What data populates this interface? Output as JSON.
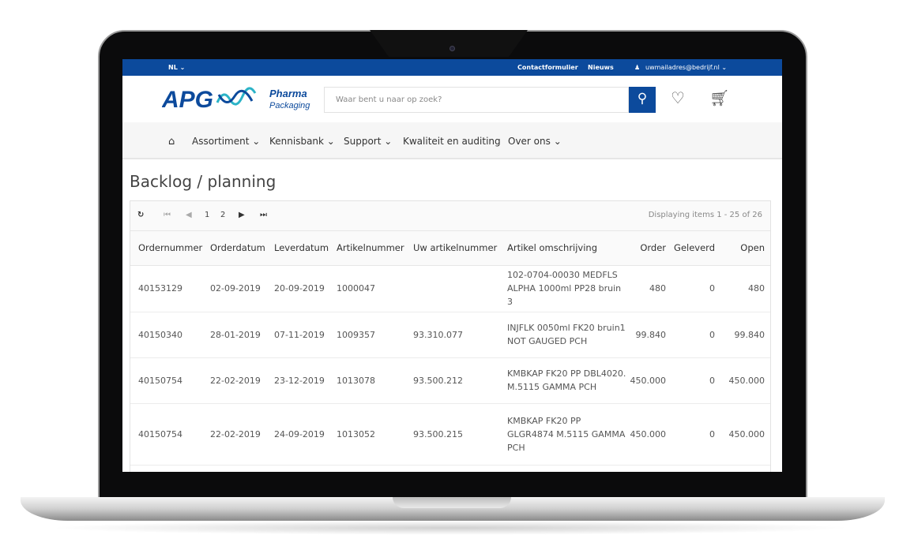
{
  "topbar": {
    "language": "NL ⌄",
    "contact": "Contactformulier",
    "news": "Nieuws",
    "user": "uwmailadres@bedrijf.nl ⌄"
  },
  "header": {
    "logo_text": "APG Pharma Packaging",
    "search_placeholder": "Waar bent u naar op zoek?"
  },
  "nav": {
    "items": [
      "Assortiment ⌄",
      "Kennisbank ⌄",
      "Support ⌄",
      "Kwaliteit en auditing",
      "Over ons ⌄"
    ]
  },
  "page": {
    "title": "Backlog / planning"
  },
  "pager": {
    "pages": [
      "1",
      "2"
    ],
    "status": "Displaying items 1 - 25 of 26"
  },
  "table": {
    "columns": [
      "Ordernummer",
      "Orderdatum",
      "Leverdatum",
      "Artikelnummer",
      "Uw artikelnummer",
      "Artikel omschrijving",
      "Order",
      "Geleverd",
      "Open"
    ],
    "rows": [
      [
        "40153129",
        "02-09-2019",
        "20-09-2019",
        "1000047",
        "",
        "102-0704-00030 MEDFLS ALPHA 1000ml PP28 bruin 3",
        "480",
        "0",
        "480"
      ],
      [
        "40150340",
        "28-01-2019",
        "07-11-2019",
        "1009357",
        "93.310.077",
        "INJFLK 0050ml FK20 bruin1 NOT GAUGED PCH",
        "99.840",
        "0",
        "99.840"
      ],
      [
        "40150754",
        "22-02-2019",
        "23-12-2019",
        "1013078",
        "93.500.212",
        "KMBKAP FK20 PP DBL4020. M.5115 GAMMA PCH",
        "450.000",
        "0",
        "450.000"
      ],
      [
        "40150754",
        "22-02-2019",
        "24-09-2019",
        "1013052",
        "93.500.215",
        "KMBKAP FK20 PP GLGR4874 M.5115 GAMMA PCH",
        "450.000",
        "0",
        "450.000"
      ]
    ]
  },
  "colors": {
    "brand": "#0c4a9c"
  }
}
